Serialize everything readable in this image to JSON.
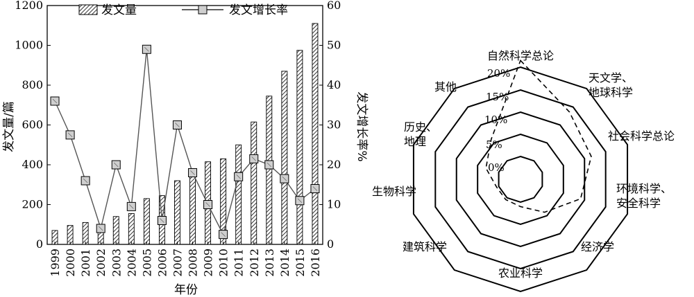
{
  "chart_data": [
    {
      "type": "bar+line",
      "categories": [
        "1999",
        "2000",
        "2001",
        "2002",
        "2003",
        "2004",
        "2005",
        "2006",
        "2007",
        "2008",
        "2009",
        "2010",
        "2011",
        "2012",
        "2013",
        "2014",
        "2015",
        "2016"
      ],
      "series": [
        {
          "name": "发文量",
          "type": "bar",
          "axis": "left",
          "values": [
            70,
            95,
            110,
            100,
            140,
            155,
            230,
            245,
            320,
            380,
            415,
            430,
            500,
            615,
            745,
            870,
            975,
            1110
          ]
        },
        {
          "name": "发文增长率",
          "type": "line",
          "axis": "right",
          "values": [
            36,
            27.5,
            16,
            4,
            20,
            9.5,
            49,
            6,
            30,
            18,
            10,
            2.5,
            17,
            21.5,
            20,
            16.5,
            11,
            14
          ]
        }
      ],
      "xlabel": "年份",
      "ylabel_left": "发文量/篇",
      "ylabel_right": "发文增长率%",
      "ylim_left": [
        0,
        1200
      ],
      "ylim_right": [
        0,
        60
      ],
      "yticks_left": [
        "0",
        "200",
        "400",
        "600",
        "800",
        "1000",
        "1200"
      ],
      "yticks_right": [
        "0",
        "10",
        "20",
        "30",
        "40",
        "50",
        "60"
      ],
      "legend_position": "top"
    },
    {
      "type": "radar",
      "axes": [
        {
          "label": "自然科学总论",
          "value": 21.5
        },
        {
          "label": "天文学、\n地球科学",
          "value": 13.5
        },
        {
          "label": "社会科学总论",
          "value": 11.5
        },
        {
          "label": "环境科学、\n安全科学",
          "value": 9
        },
        {
          "label": "经济学",
          "value": 4
        },
        {
          "label": "农业科学",
          "value": 1
        },
        {
          "label": "建筑科学",
          "value": 0.5
        },
        {
          "label": "生物科学",
          "value": 0.5
        },
        {
          "label": "历史、\n地理",
          "value": 3
        },
        {
          "label": "其他",
          "value": 6
        }
      ],
      "rlim": [
        0,
        20
      ],
      "ring_labels": [
        "0%",
        "5%",
        "10%",
        "15%",
        "20%"
      ],
      "line_style": "dashed"
    }
  ]
}
